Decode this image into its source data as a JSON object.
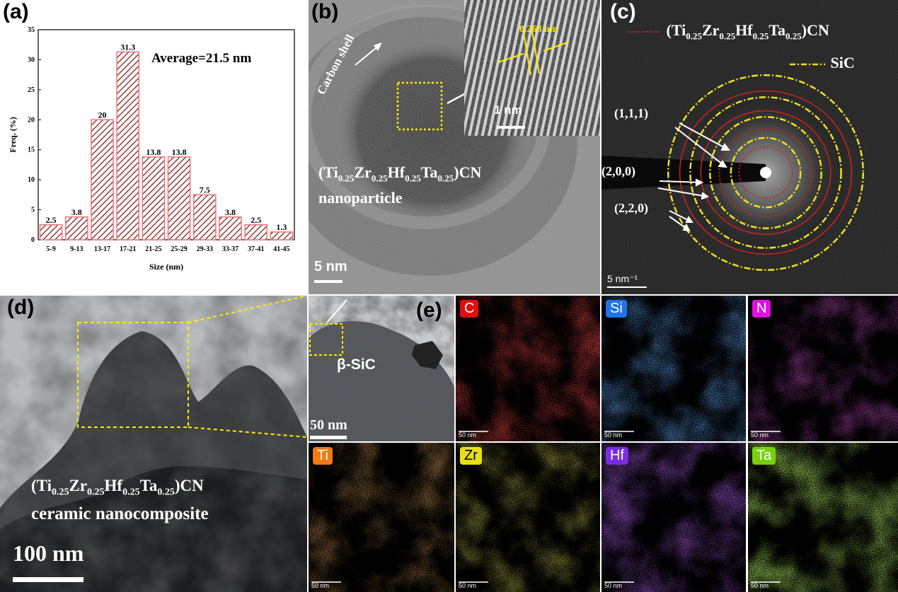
{
  "panel_a": {
    "label": "(a)",
    "average_text": "Average=21.5 nm",
    "chart_data": {
      "type": "bar",
      "categories": [
        "5-9",
        "9-13",
        "13-17",
        "17-21",
        "21-25",
        "25-29",
        "29-33",
        "33-37",
        "37-41",
        "41-45"
      ],
      "values": [
        2.5,
        3.8,
        20,
        31.3,
        13.8,
        13.8,
        7.5,
        3.8,
        2.5,
        1.3
      ],
      "value_labels": [
        "2.5",
        "3.8",
        "20",
        "31.3",
        "13.8",
        "13.8",
        "7.5",
        "3.8",
        "2.5",
        "1.3"
      ],
      "xlabel": "Size (nm)",
      "ylabel": "Freq. (%)",
      "ylim": [
        0,
        35
      ],
      "yticks": [
        "0",
        "5",
        "10",
        "15",
        "20",
        "25",
        "30",
        "35"
      ],
      "bar_color": "#e8747c",
      "hatch_color": "#8b1a1a"
    }
  },
  "panel_b": {
    "label": "(b)",
    "carbon_shell": "Carbon shell",
    "spacing": "0.268 nm",
    "inset_scale": "1 nm",
    "name_prefix": "(Ti",
    "sub1": "0.25",
    "zr": "Zr",
    "sub2": "0.25",
    "hf": "Hf",
    "sub3": "0.25",
    "ta": "Ta",
    "sub4": "0.25",
    "suffix": ")CN",
    "line2": "nanoparticle",
    "scale": "5 nm"
  },
  "panel_c": {
    "label": "(c)",
    "legend1_prefix": "(Ti",
    "legend1_suffix": ")CN",
    "legend2": "SiC",
    "plane1": "(1,1,1)",
    "plane2": "(2,0,0)",
    "plane3": "(2,2,0)",
    "scale": "5 nm⁻¹",
    "red_color": "#d02020",
    "yellow_color": "#f0e020"
  },
  "panel_d": {
    "label": "(d)",
    "line1_suffix": ")CN",
    "line2": "ceramic nanocomposite",
    "scale": "100 nm",
    "zoom_label": "β-SiC",
    "zoom_scale": "50 nm",
    "zoom_panel_label": "(e)"
  },
  "panel_e": {
    "maps": [
      {
        "element": "C",
        "color": "#e01010",
        "tag_bg": "#e01010",
        "scale": "50 nm"
      },
      {
        "element": "Si",
        "color": "#2060e0",
        "tag_bg": "#1e74e6",
        "scale": "50 nm"
      },
      {
        "element": "N",
        "color": "#d020d0",
        "tag_bg": "#e010e0",
        "scale": "50 nm"
      },
      {
        "element": "Ti",
        "color": "#e07020",
        "tag_bg": "#f07a10",
        "scale": "50 nm"
      },
      {
        "element": "Zr",
        "color": "#d8d020",
        "tag_bg": "#e8e010",
        "scale": "50 nm"
      },
      {
        "element": "Hf",
        "color": "#7020e0",
        "tag_bg": "#7a2ce0",
        "scale": "50 nm"
      },
      {
        "element": "Ta",
        "color": "#70d020",
        "tag_bg": "#78d010",
        "scale": "50 nm"
      }
    ]
  }
}
